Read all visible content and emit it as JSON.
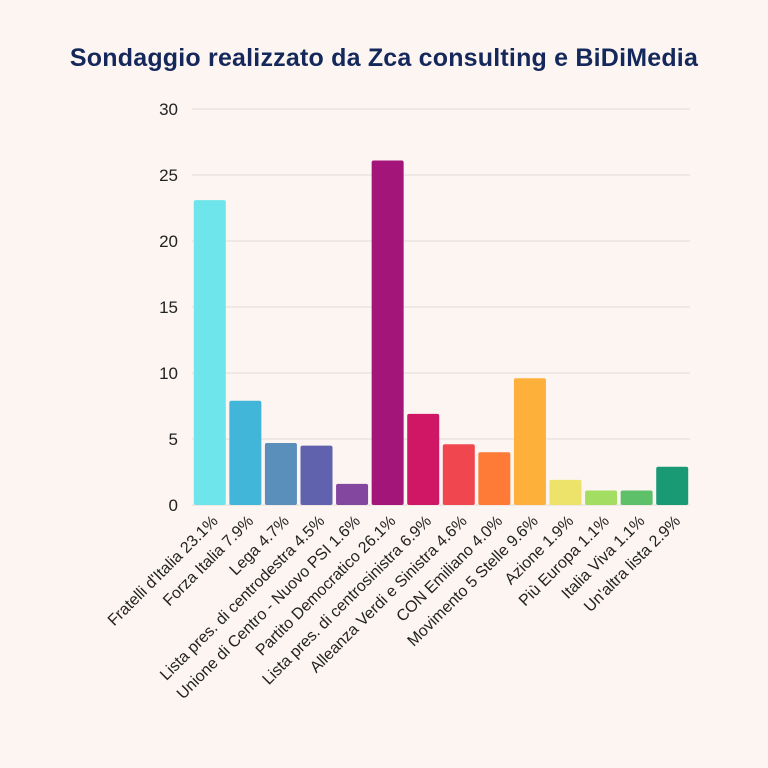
{
  "chart_data": {
    "type": "bar",
    "title": "Sondaggio realizzato da Zca consulting e BiDiMedia",
    "xlabel": "",
    "ylabel": "",
    "ylim": [
      0,
      30
    ],
    "yticks": [
      0,
      5,
      10,
      15,
      20,
      25,
      30
    ],
    "grid": true,
    "categories": [
      "Fratelli d'Italia 23.1%",
      "Forza Italia 7.9%",
      "Lega 4.7%",
      "Lista pres. di centrodestra 4.5%",
      "Unione di Centro - Nuovo PSI 1.6%",
      "Partito Democratico 26.1%",
      "Lista pres. di centrosinistra 6.9%",
      "Alleanza Verdi e Sinistra 4.6%",
      "CON Emiliano 4.0%",
      "Movimento 5 Stelle 9.6%",
      "Azione 1.9%",
      "Più Europa 1.1%",
      "Italia Viva 1.1%",
      "Un'altra lista 2.9%"
    ],
    "values": [
      23.1,
      7.9,
      4.7,
      4.5,
      1.6,
      26.1,
      6.9,
      4.6,
      4.0,
      9.6,
      1.9,
      1.1,
      1.1,
      2.9
    ],
    "colors": [
      "#6ee5ea",
      "#42b6d8",
      "#5a8fbb",
      "#6062ad",
      "#8447a0",
      "#a4157a",
      "#cf1766",
      "#f04650",
      "#fd7b36",
      "#fdb13a",
      "#ede26a",
      "#a3de63",
      "#5fc06a",
      "#1a9a74"
    ]
  }
}
